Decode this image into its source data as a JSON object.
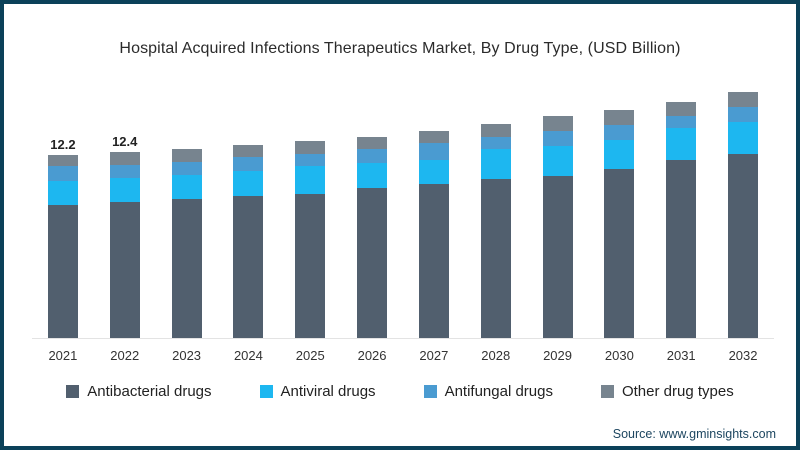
{
  "chart_data": {
    "type": "bar",
    "stacked": true,
    "title": "Hospital Acquired Infections Therapeutics Market, By Drug Type, (USD Billion)",
    "unit": "USD Billion",
    "categories": [
      "2021",
      "2022",
      "2023",
      "2024",
      "2025",
      "2026",
      "2027",
      "2028",
      "2029",
      "2030",
      "2031",
      "2032"
    ],
    "series": [
      {
        "name": "Antibacterial drugs",
        "color": "#515f6e",
        "values": [
          8.9,
          9.05,
          9.25,
          9.45,
          9.6,
          10.0,
          10.3,
          10.6,
          10.8,
          11.3,
          11.9,
          12.3
        ]
      },
      {
        "name": "Antiviral drugs",
        "color": "#1db7f0",
        "values": [
          1.6,
          1.6,
          1.6,
          1.7,
          1.85,
          1.7,
          1.6,
          2.0,
          2.0,
          1.9,
          2.1,
          2.1
        ]
      },
      {
        "name": "Antifungal drugs",
        "color": "#4a9bd1",
        "values": [
          0.95,
          0.9,
          0.9,
          0.9,
          0.85,
          0.9,
          1.1,
          0.8,
          1.0,
          1.0,
          0.8,
          1.0
        ]
      },
      {
        "name": "Other drug types",
        "color": "#77848f",
        "values": [
          0.75,
          0.85,
          0.85,
          0.8,
          0.85,
          0.8,
          0.8,
          0.85,
          1.0,
          1.0,
          0.95,
          1.0
        ]
      }
    ],
    "totals": [
      12.2,
      12.4,
      12.6,
      12.85,
      13.15,
      13.4,
      13.8,
      14.25,
      14.8,
      15.2,
      15.75,
      16.4
    ],
    "bar_labels": [
      "12.2",
      "12.4",
      "",
      "",
      "",
      "",
      "",
      "",
      "",
      "",
      "",
      ""
    ],
    "ylim": [
      0,
      16.5
    ],
    "grid": false,
    "legend_position": "bottom"
  },
  "source": {
    "text": "Source: www.gminsights.com"
  },
  "colors": {
    "frame_border": "#0b4159",
    "axis_line": "#e3e3e3",
    "title_text": "#2b2b2b",
    "source_text": "#1d4660"
  }
}
